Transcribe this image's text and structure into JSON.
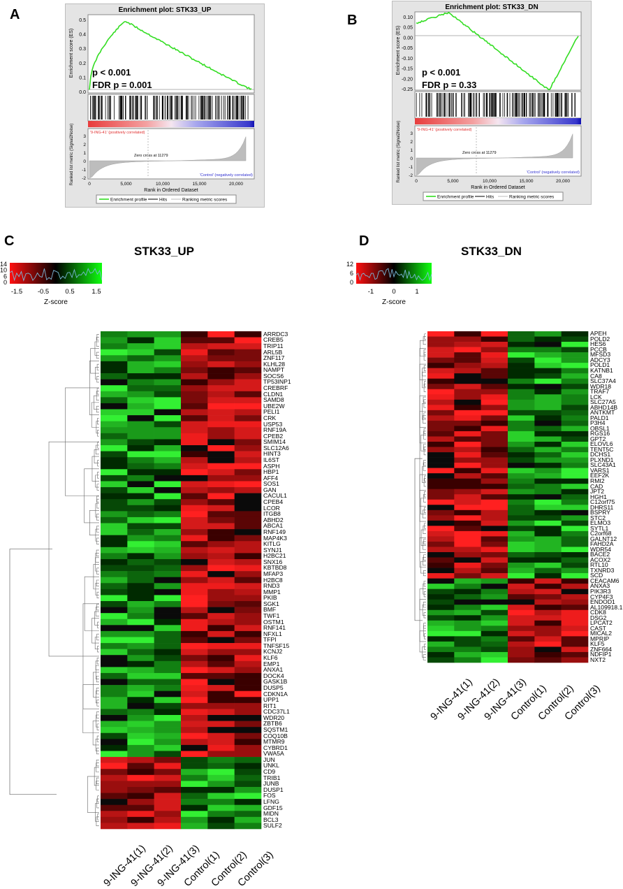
{
  "panels": {
    "a": {
      "letter": "A",
      "title": "Enrichment plot: STK33_UP",
      "p_value": "p < 0.001",
      "fdr": "FDR p = 0.001",
      "es_ylabel": "Enrichment score (ES)",
      "es_ticks": [
        "0.5",
        "0.4",
        "0.3",
        "0.2",
        "0.1",
        "0.0"
      ],
      "rank_ylabel": "Ranked list metric (Signal2Noise)",
      "rank_ticks": [
        "3",
        "2",
        "1",
        "0",
        "-1",
        "-2"
      ],
      "pos_label": "'9-ING-41' (positively correlated)",
      "neg_label": "'Control' (negatively correlated)",
      "zero_cross": "Zero cross at 11279",
      "xticks": [
        "0",
        "5,000",
        "10,000",
        "15,000",
        "20,000"
      ],
      "xlabel": "Rank in Ordered Dataset",
      "legend": [
        "Enrichment profile",
        "Hits",
        "Ranking metric scores"
      ]
    },
    "b": {
      "letter": "B",
      "title": "Enrichment plot: STK33_DN",
      "p_value": "p < 0.001",
      "fdr": "FDR p = 0.33",
      "es_ylabel": "Enrichment score (ES)",
      "es_ticks": [
        "0.10",
        "0.05",
        "0.00",
        "-0.05",
        "-0.10",
        "-0.15",
        "-0.20",
        "-0.25"
      ],
      "rank_ylabel": "Ranked list metric (Signal2Noise)",
      "rank_ticks": [
        "3",
        "2",
        "1",
        "0",
        "-1",
        "-2"
      ],
      "pos_label": "'9-ING-41' (positively correlated)",
      "neg_label": "'Control' (negatively correlated)",
      "zero_cross": "Zero cross at 11279",
      "xticks": [
        "0",
        "5,000",
        "10,000",
        "15,000",
        "20,000"
      ],
      "xlabel": "Rank in Ordered Dataset",
      "legend": [
        "Enrichment profile",
        "Hits",
        "Ranking metric scores"
      ]
    },
    "c": {
      "letter": "C",
      "title": "STK33_UP",
      "zscore_label": "Z-score",
      "zscore_ticks": [
        "-1.5",
        "-0.5",
        "0.5",
        "1.5"
      ],
      "count_ticks": [
        "14",
        "10",
        "6",
        "0"
      ],
      "columns": [
        "9-ING-41(1)",
        "9-ING-41(2)",
        "9-ING-41(3)",
        "Control(1)",
        "Control(2)",
        "Control(3)"
      ],
      "genes": [
        "ARRDC3",
        "CREB5",
        "TRIP11",
        "ARL5B",
        "ZNF117",
        "KLHL28",
        "NAMPT",
        "SOCS6",
        "TP53INP1",
        "CREBRF",
        "CLDN1",
        "SAMD8",
        "UBE2W",
        "PELI1",
        "CRK",
        "USP53",
        "RNF19A",
        "CPEB2",
        "SMIM14",
        "SLC12A6",
        "HINT3",
        "IL6ST",
        "ASPH",
        "HBP1",
        "AFF4",
        "SOS1",
        "GAN",
        "CACUL1",
        "CPEB4",
        "LCOR",
        "ITGB8",
        "ABHD2",
        "ABCA1",
        "RNF149",
        "MAP4K3",
        "KITLG",
        "SYNJ1",
        "H2BC21",
        "SNX16",
        "KBTBD8",
        "MFAP3",
        "H2BC8",
        "RND3",
        "MMP1",
        "PKIB",
        "SGK1",
        "BMF",
        "TWF1",
        "OSTM1",
        "RNF141",
        "NFXL1",
        "TFPI",
        "TNFSF15",
        "KCNJ2",
        "KLF6",
        "EMP1",
        "ANXA1",
        "DOCK4",
        "GASK1B",
        "DUSP5",
        "CDKN1A",
        "UPP1",
        "RIT1",
        "CDC37L1",
        "WDR20",
        "ZBTB6",
        "SQSTM1",
        "COQ10B",
        "MTMR9",
        "CYBRD1",
        "VWA5A",
        "JUN",
        "UNKL",
        "CD9",
        "TRIB1",
        "JUNB",
        "DUSP1",
        "FOS",
        "LFNG",
        "GDF15",
        "MIDN",
        "BCL3",
        "SULF2"
      ],
      "n_up_block": 71
    },
    "d": {
      "letter": "D",
      "title": "STK33_DN",
      "zscore_label": "Z-score",
      "zscore_ticks": [
        "-1",
        "0",
        "1"
      ],
      "count_ticks": [
        "12",
        "6",
        "0"
      ],
      "columns": [
        "9-ING-41(1)",
        "9-ING-41(2)",
        "9-ING-41(3)",
        "Control(1)",
        "Control(2)",
        "Control(3)"
      ],
      "genes": [
        "APEH",
        "POLD2",
        "HES6",
        "PCCB",
        "MFSD3",
        "ADCY3",
        "POLD1",
        "KATNB1",
        "CA8",
        "SLC37A4",
        "WDR18",
        "TRAF7",
        "LCK",
        "SLC27A5",
        "ABHD14B",
        "ANTKMT",
        "PALD1",
        "P3H4",
        "OBSL1",
        "RGS16",
        "GPT2",
        "ELOVL6",
        "TENT5C",
        "DCHS1",
        "PLXND1",
        "SLC43A1",
        "VARS1",
        "EEF2K",
        "RMI2",
        "CAD",
        "JPT2",
        "HGH1",
        "C12orf75",
        "DHRS11",
        "BSPRY",
        "STC2",
        "ELMO3",
        "SYTL1",
        "C2orf68",
        "GALNT12",
        "FAHD2A",
        "WDR54",
        "BACE2",
        "ACOX2",
        "RTL10",
        "TXNRD3",
        "SCD",
        "CEACAM6",
        "ANXA3",
        "PIK3R3",
        "CYP4F3",
        "ENDOD1",
        "AL109918.1",
        "CDK8",
        "DSG2",
        "LPCAT2",
        "CAST",
        "MICAL2",
        "MPRIP",
        "KLF5",
        "ZNF664",
        "NDFIP1",
        "NXT2"
      ],
      "n_up_block": 47
    }
  }
}
